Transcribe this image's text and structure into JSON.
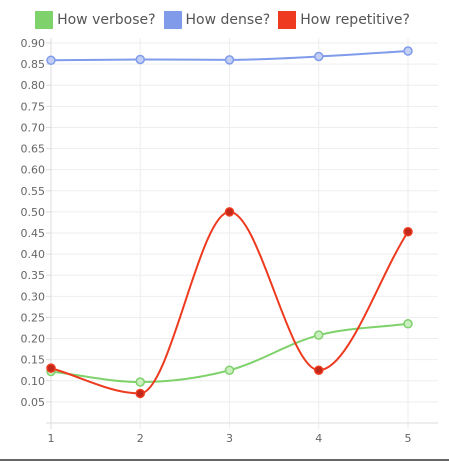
{
  "chart_data": {
    "type": "line",
    "categories": [
      "1",
      "2",
      "3",
      "4",
      "5"
    ],
    "series": [
      {
        "name": "How verbose?",
        "color": "#7fd16b",
        "values": [
          0.122,
          0.097,
          0.125,
          0.208,
          0.235
        ]
      },
      {
        "name": "How dense?",
        "color": "#7f9bea",
        "values": [
          0.859,
          0.861,
          0.86,
          0.868,
          0.881
        ]
      },
      {
        "name": "How repetitive?",
        "color": "#ee3a1f",
        "values": [
          0.13,
          0.07,
          0.5,
          0.125,
          0.453
        ]
      }
    ],
    "yticks": [
      "0.05",
      "0.10",
      "0.15",
      "0.20",
      "0.25",
      "0.30",
      "0.35",
      "0.40",
      "0.45",
      "0.50",
      "0.55",
      "0.60",
      "0.65",
      "0.70",
      "0.75",
      "0.80",
      "0.85",
      "0.90"
    ],
    "ylim": [
      0,
      0.9
    ],
    "grid": true,
    "legend_position": "top"
  }
}
